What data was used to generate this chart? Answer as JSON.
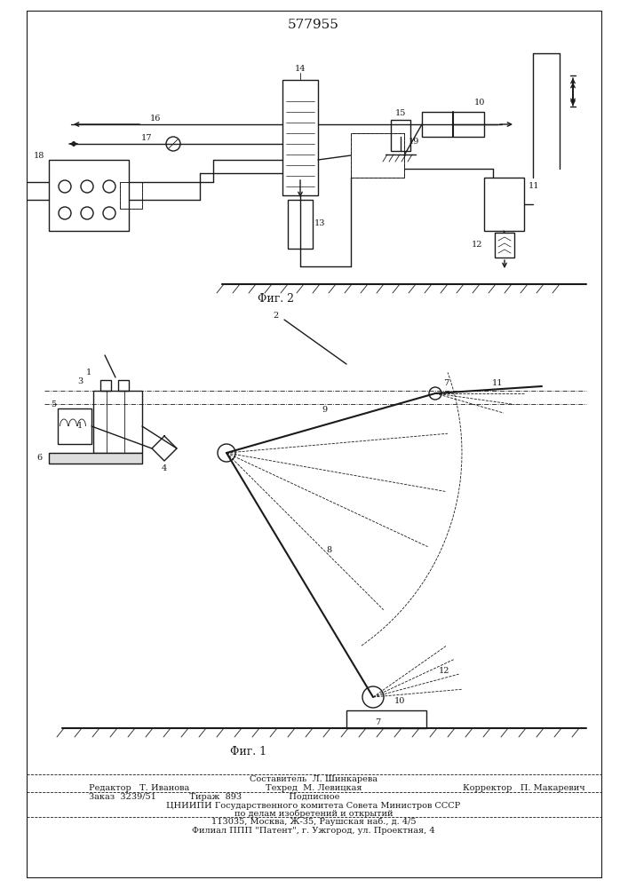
{
  "title": "577955",
  "bg_color": "#ffffff",
  "fig_width": 7.07,
  "fig_height": 10.0,
  "fig2_label": "Φиг. 2",
  "fig1_label": "Φиг. 1",
  "footer_line1": "Составитель  Л. Шинкарева",
  "footer_line2a": "Редактор   Т. Иванова",
  "footer_line2b": "Техред  М. Левицкая",
  "footer_line2c": "Корректор   П. Макаревич",
  "footer_line3": "Заказ  3239/51            Тираж  893                 Подписное",
  "footer_line4": "ЦНИИПИ Государственного комитета Совета Министров СССР",
  "footer_line5": "по делам изобретений и открытий",
  "footer_line6": "113035, Москва, Ж-35, Раушская наб., д. 4/5",
  "footer_line7": "Филиал ППП \"Патент\", г. Ужгород, ул. Проектная, 4"
}
